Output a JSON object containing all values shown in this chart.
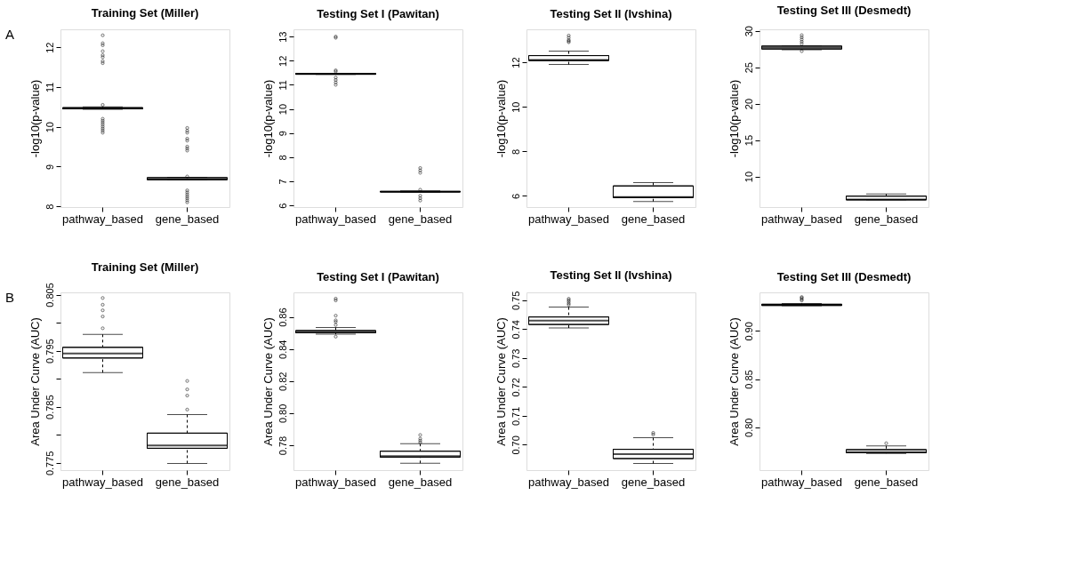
{
  "chart_data": [
    {
      "type": "box",
      "title": "Training Set  (Miller)",
      "ylabel": "-log10(p-value)",
      "annotations": [
        "A"
      ],
      "grid": false,
      "categories": [
        "pathway_based",
        "gene_based"
      ],
      "ylim": [
        7.98,
        12.45
      ],
      "yticks": [
        8,
        9,
        10,
        11,
        12
      ],
      "boxes": [
        {
          "low": 10.44,
          "q1": 10.45,
          "median": 10.46,
          "q3": 10.48,
          "high": 10.5,
          "outliers": [
            12.3,
            12.1,
            12.05,
            11.9,
            11.8,
            11.75,
            11.65,
            11.6,
            10.55,
            10.2,
            10.15,
            10.1,
            10.05,
            10.0,
            9.95,
            9.9,
            9.85
          ]
        },
        {
          "low": 8.66,
          "q1": 8.67,
          "median": 8.68,
          "q3": 8.72,
          "high": 8.73,
          "outliers": [
            9.97,
            9.9,
            9.85,
            9.7,
            9.65,
            9.5,
            9.45,
            9.4,
            8.75,
            8.4,
            8.35,
            8.3,
            8.25,
            8.2,
            8.15,
            8.1
          ]
        }
      ]
    },
    {
      "type": "box",
      "title": "Testing Set I (Pawitan)",
      "ylabel": "-log10(p-value)",
      "grid": false,
      "categories": [
        "pathway_based",
        "gene_based"
      ],
      "ylim": [
        5.93,
        13.3
      ],
      "yticks": [
        6,
        7,
        8,
        9,
        10,
        11,
        12,
        13
      ],
      "boxes": [
        {
          "low": 11.43,
          "q1": 11.44,
          "median": 11.45,
          "q3": 11.47,
          "high": 11.48,
          "outliers": [
            13.0,
            12.95,
            11.6,
            11.55,
            11.3,
            11.2,
            11.1,
            11.0
          ]
        },
        {
          "low": 6.55,
          "q1": 6.56,
          "median": 6.57,
          "q3": 6.58,
          "high": 6.6,
          "outliers": [
            7.55,
            7.45,
            7.35,
            6.65,
            6.4,
            6.3,
            6.2
          ]
        }
      ]
    },
    {
      "type": "box",
      "title": "Testing Set II (Ivshina)",
      "ylabel": "-log10(p-value)",
      "grid": false,
      "categories": [
        "pathway_based",
        "gene_based"
      ],
      "ylim": [
        5.5,
        13.48
      ],
      "yticks": [
        6,
        8,
        10,
        12
      ],
      "boxes": [
        {
          "low": 11.9,
          "q1": 12.08,
          "median": 12.1,
          "q3": 12.3,
          "high": 12.5,
          "outliers": [
            13.2,
            13.1,
            13.0,
            12.95,
            12.9
          ]
        },
        {
          "low": 5.75,
          "q1": 5.93,
          "median": 5.95,
          "q3": 6.45,
          "high": 6.6
        }
      ]
    },
    {
      "type": "box",
      "title": "Testing Set III (Desmedt)",
      "ylabel": "-log10(p-value)",
      "grid": false,
      "categories": [
        "pathway_based",
        "gene_based"
      ],
      "ylim": [
        5.8,
        30.2
      ],
      "yticks": [
        10,
        15,
        20,
        25,
        30
      ],
      "boxes": [
        {
          "low": 27.4,
          "q1": 27.5,
          "median": 27.7,
          "q3": 27.9,
          "high": 27.95,
          "outliers": [
            29.4,
            29.1,
            28.8,
            28.5,
            28.2,
            27.2
          ]
        },
        {
          "low": 6.8,
          "q1": 6.8,
          "median": 6.85,
          "q3": 7.3,
          "high": 7.6
        }
      ]
    },
    {
      "type": "box",
      "title": "Training Set  (Miller)",
      "ylabel": "Area Under Curve (AUC)",
      "annotations": [
        "B"
      ],
      "grid": false,
      "categories": [
        "pathway_based",
        "gene_based"
      ],
      "ylim": [
        0.7737,
        0.8054
      ],
      "yticks": [
        0.775,
        {
          "value": 0.78,
          "label": null
        },
        0.785,
        {
          "value": 0.79,
          "label": null
        },
        0.795,
        {
          "value": 0.8,
          "label": null
        },
        0.805
      ],
      "boxes": [
        {
          "low": 0.7911,
          "q1": 0.7937,
          "median": 0.7945,
          "q3": 0.7956,
          "high": 0.7979,
          "outliers": [
            0.8044,
            0.8032,
            0.8022,
            0.8011,
            0.799
          ]
        },
        {
          "low": 0.7749,
          "q1": 0.7776,
          "median": 0.7781,
          "q3": 0.7803,
          "high": 0.7836,
          "outliers": [
            0.7896,
            0.7881,
            0.787,
            0.7845
          ]
        }
      ]
    },
    {
      "type": "box",
      "title": "Testing Set I (Pawitan)",
      "ylabel": "Area Under Curve (AUC)",
      "grid": false,
      "categories": [
        "pathway_based",
        "gene_based"
      ],
      "ylim": [
        0.7645,
        0.8753
      ],
      "yticks": [
        0.78,
        {
          "value": 0.8,
          "label": "0.80"
        },
        0.82,
        0.84,
        0.86
      ],
      "boxes": [
        {
          "low": 0.8492,
          "q1": 0.8501,
          "median": 0.8507,
          "q3": 0.8515,
          "high": 0.8534,
          "outliers": [
            0.8714,
            0.8703,
            0.8608,
            0.8579,
            0.8569,
            0.855,
            0.8477
          ]
        },
        {
          "low": 0.7688,
          "q1": 0.7726,
          "median": 0.7732,
          "q3": 0.7763,
          "high": 0.781,
          "outliers": [
            0.7864,
            0.7841,
            0.7829,
            0.7817
          ]
        }
      ]
    },
    {
      "type": "box",
      "title": "Testing Set II (Ivshina)",
      "ylabel": "Area Under Curve (AUC)",
      "grid": false,
      "categories": [
        "pathway_based",
        "gene_based"
      ],
      "ylim": [
        0.6912,
        0.7527
      ],
      "yticks": [
        {
          "value": 0.7,
          "label": "0.70"
        },
        0.71,
        0.72,
        0.73,
        0.74,
        0.75
      ],
      "boxes": [
        {
          "low": 0.7404,
          "q1": 0.7416,
          "median": 0.7429,
          "q3": 0.7442,
          "high": 0.7476,
          "outliers": [
            0.7505,
            0.75,
            0.7495,
            0.7489,
            0.7484
          ]
        },
        {
          "low": 0.6935,
          "q1": 0.6952,
          "median": 0.6967,
          "q3": 0.6984,
          "high": 0.7024,
          "outliers": [
            0.7041,
            0.7035
          ]
        }
      ]
    },
    {
      "type": "box",
      "title": "Testing Set III (Desmedt)",
      "ylabel": "Area Under Curve (AUC)",
      "grid": false,
      "categories": [
        "pathway_based",
        "gene_based"
      ],
      "ylim": [
        0.7555,
        0.94
      ],
      "yticks": [
        {
          "value": 0.8,
          "label": "0.80"
        },
        0.85,
        {
          "value": 0.9,
          "label": "0.90"
        }
      ],
      "boxes": [
        {
          "low": 0.9261,
          "q1": 0.9265,
          "median": 0.9268,
          "q3": 0.9277,
          "high": 0.9284,
          "outliers": [
            0.9352,
            0.9342,
            0.9329,
            0.9316
          ]
        },
        {
          "low": 0.7729,
          "q1": 0.7735,
          "median": 0.7742,
          "q3": 0.7768,
          "high": 0.7806,
          "outliers": [
            0.7834
          ]
        }
      ]
    }
  ]
}
